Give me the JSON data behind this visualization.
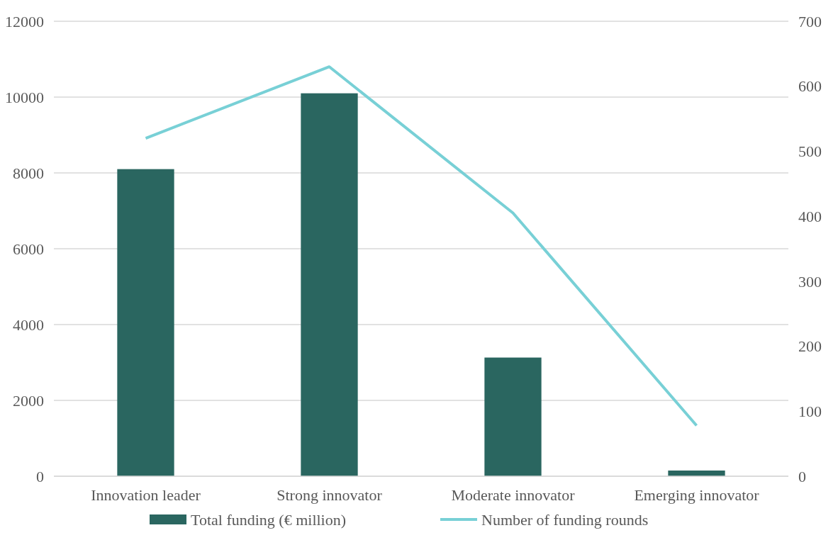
{
  "chart_data": {
    "type": "bar",
    "categories": [
      "Innovation leader",
      "Strong innovator",
      "Moderate innovator",
      "Emerging innovator"
    ],
    "series": [
      {
        "name": "Total funding (€ million)",
        "color": "#2a6660",
        "values": [
          8100,
          10100,
          3130,
          150
        ]
      },
      {
        "name": "Number of funding rounds",
        "type": "line",
        "axis": "y2",
        "color": "#78d0d6",
        "values": [
          520,
          630,
          405,
          78
        ]
      }
    ],
    "ylim": [
      0,
      12000
    ],
    "yticks": [
      0,
      2000,
      4000,
      6000,
      8000,
      10000,
      12000
    ],
    "y2lim": [
      0,
      700
    ],
    "y2ticks": [
      0,
      100,
      200,
      300,
      400,
      500,
      600,
      700
    ],
    "grid": "y",
    "legend": "bottom",
    "marker": "none",
    "line_style": "solid"
  }
}
